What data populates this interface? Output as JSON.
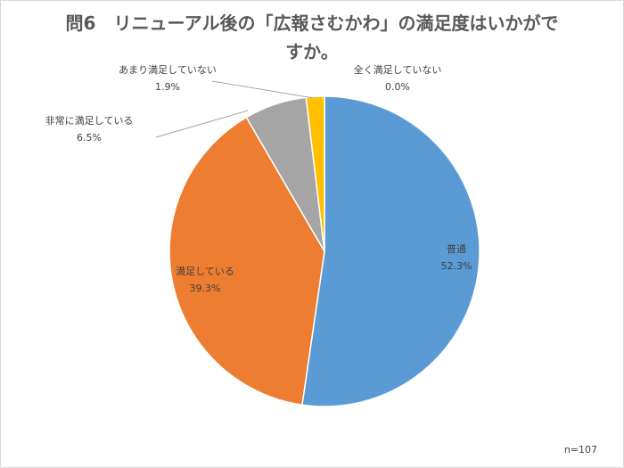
{
  "title": {
    "line1": "問6　リニューアル後の「広報さむかわ」の満足度はいかがで",
    "line2": "すか。"
  },
  "note": "n=107",
  "chart_data": {
    "type": "pie",
    "title": "問6　リニューアル後の「広報さむかわ」の満足度はいかがですか。",
    "start": "12 o'clock",
    "direction": "clockwise",
    "slices": [
      {
        "label": "普通",
        "value": 52.3,
        "value_label": "52.3%",
        "color": "#5b9bd5"
      },
      {
        "label": "満足している",
        "value": 39.3,
        "value_label": "39.3%",
        "color": "#ed7d31"
      },
      {
        "label": "非常に満足している",
        "value": 6.5,
        "value_label": "6.5%",
        "color": "#a5a5a5"
      },
      {
        "label": "あまり満足していない",
        "value": 1.9,
        "value_label": "1.9%",
        "color": "#ffc000"
      },
      {
        "label": "全く満足していない",
        "value": 0.0,
        "value_label": "0.0%",
        "color": "#4472c4"
      }
    ]
  }
}
